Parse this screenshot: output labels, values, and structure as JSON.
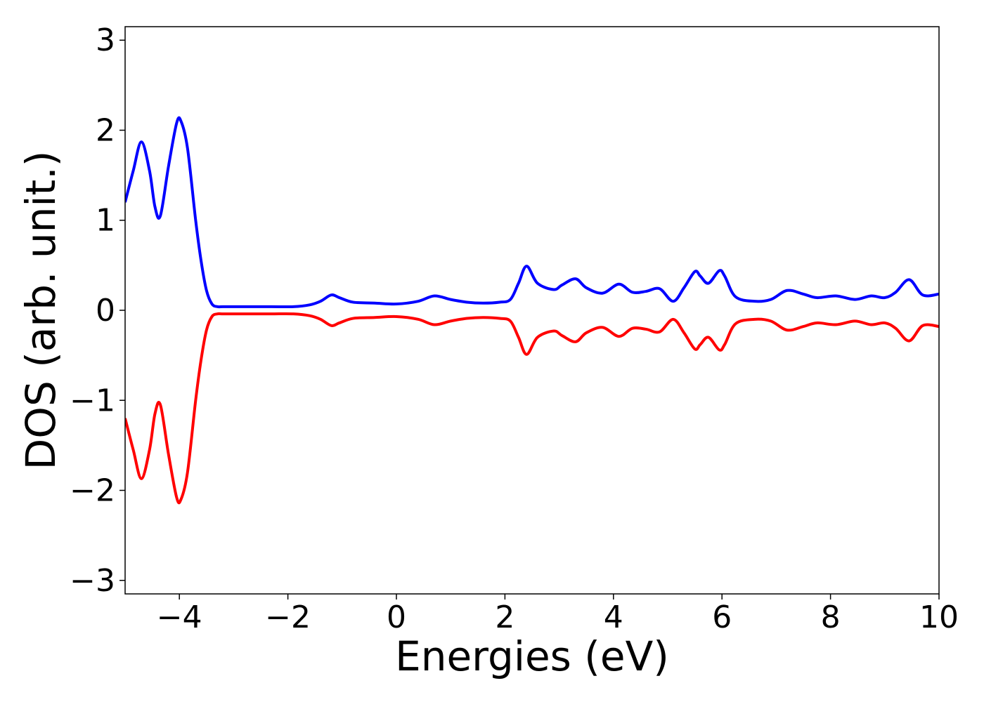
{
  "chart_data": {
    "type": "line",
    "title": "",
    "xlabel": "Energies (eV)",
    "ylabel": "DOS (arb. unit.)",
    "xlim": [
      -5,
      10
    ],
    "ylim": [
      -3.15,
      3.15
    ],
    "xticks": [
      -4,
      -2,
      0,
      2,
      4,
      6,
      8,
      10
    ],
    "yticks": [
      -3,
      -2,
      -1,
      0,
      1,
      2,
      3
    ],
    "xtick_labels": [
      "−4",
      "−2",
      "0",
      "2",
      "4",
      "6",
      "8",
      "10"
    ],
    "ytick_labels": [
      "−3",
      "−2",
      "−1",
      "0",
      "1",
      "2",
      "3"
    ],
    "grid": false,
    "legend": "none",
    "series": [
      {
        "color": "#0000ff",
        "x": [
          -5.0,
          -4.85,
          -4.7,
          -4.55,
          -4.45,
          -4.35,
          -4.2,
          -4.05,
          -3.97,
          -3.85,
          -3.7,
          -3.6,
          -3.5,
          -3.4,
          -3.3,
          -3.2,
          -3.0,
          -2.7,
          -2.3,
          -1.9,
          -1.6,
          -1.4,
          -1.2,
          -1.05,
          -0.8,
          -0.4,
          0.0,
          0.4,
          0.7,
          1.0,
          1.3,
          1.6,
          1.9,
          2.1,
          2.25,
          2.4,
          2.6,
          2.9,
          3.05,
          3.3,
          3.5,
          3.8,
          4.1,
          4.35,
          4.6,
          4.85,
          5.1,
          5.3,
          5.5,
          5.6,
          5.75,
          5.95,
          6.05,
          6.25,
          6.6,
          6.9,
          7.2,
          7.5,
          7.75,
          8.1,
          8.45,
          8.75,
          9.0,
          9.2,
          9.45,
          9.7,
          10.0
        ],
        "y": [
          1.2,
          1.55,
          1.87,
          1.55,
          1.15,
          1.05,
          1.6,
          2.08,
          2.1,
          1.8,
          1.0,
          0.55,
          0.22,
          0.07,
          0.04,
          0.04,
          0.04,
          0.04,
          0.04,
          0.04,
          0.06,
          0.1,
          0.17,
          0.14,
          0.09,
          0.08,
          0.07,
          0.1,
          0.16,
          0.12,
          0.09,
          0.08,
          0.09,
          0.12,
          0.3,
          0.49,
          0.3,
          0.23,
          0.28,
          0.35,
          0.25,
          0.19,
          0.29,
          0.2,
          0.21,
          0.24,
          0.1,
          0.25,
          0.43,
          0.38,
          0.3,
          0.44,
          0.38,
          0.15,
          0.1,
          0.12,
          0.22,
          0.18,
          0.14,
          0.16,
          0.12,
          0.16,
          0.14,
          0.2,
          0.34,
          0.17,
          0.18
        ]
      },
      {
        "color": "#ff0000",
        "x": [
          -5.0,
          -4.85,
          -4.7,
          -4.55,
          -4.45,
          -4.35,
          -4.2,
          -4.05,
          -3.97,
          -3.85,
          -3.7,
          -3.6,
          -3.5,
          -3.4,
          -3.3,
          -3.2,
          -3.0,
          -2.7,
          -2.3,
          -1.9,
          -1.6,
          -1.4,
          -1.2,
          -1.05,
          -0.8,
          -0.4,
          0.0,
          0.4,
          0.7,
          1.0,
          1.3,
          1.6,
          1.9,
          2.1,
          2.25,
          2.4,
          2.6,
          2.9,
          3.05,
          3.3,
          3.5,
          3.8,
          4.1,
          4.35,
          4.6,
          4.85,
          5.1,
          5.3,
          5.5,
          5.6,
          5.75,
          5.95,
          6.05,
          6.25,
          6.6,
          6.9,
          7.2,
          7.5,
          7.75,
          8.1,
          8.45,
          8.75,
          9.0,
          9.2,
          9.45,
          9.7,
          10.0
        ],
        "y": [
          -1.2,
          -1.55,
          -1.87,
          -1.55,
          -1.15,
          -1.05,
          -1.6,
          -2.08,
          -2.1,
          -1.8,
          -1.0,
          -0.55,
          -0.22,
          -0.07,
          -0.04,
          -0.04,
          -0.04,
          -0.04,
          -0.04,
          -0.04,
          -0.06,
          -0.1,
          -0.17,
          -0.14,
          -0.09,
          -0.08,
          -0.07,
          -0.1,
          -0.16,
          -0.12,
          -0.09,
          -0.08,
          -0.09,
          -0.12,
          -0.3,
          -0.49,
          -0.3,
          -0.23,
          -0.28,
          -0.35,
          -0.25,
          -0.19,
          -0.29,
          -0.2,
          -0.21,
          -0.24,
          -0.1,
          -0.25,
          -0.43,
          -0.38,
          -0.3,
          -0.44,
          -0.38,
          -0.15,
          -0.1,
          -0.12,
          -0.22,
          -0.18,
          -0.14,
          -0.16,
          -0.12,
          -0.16,
          -0.14,
          -0.2,
          -0.34,
          -0.17,
          -0.18
        ]
      }
    ]
  }
}
